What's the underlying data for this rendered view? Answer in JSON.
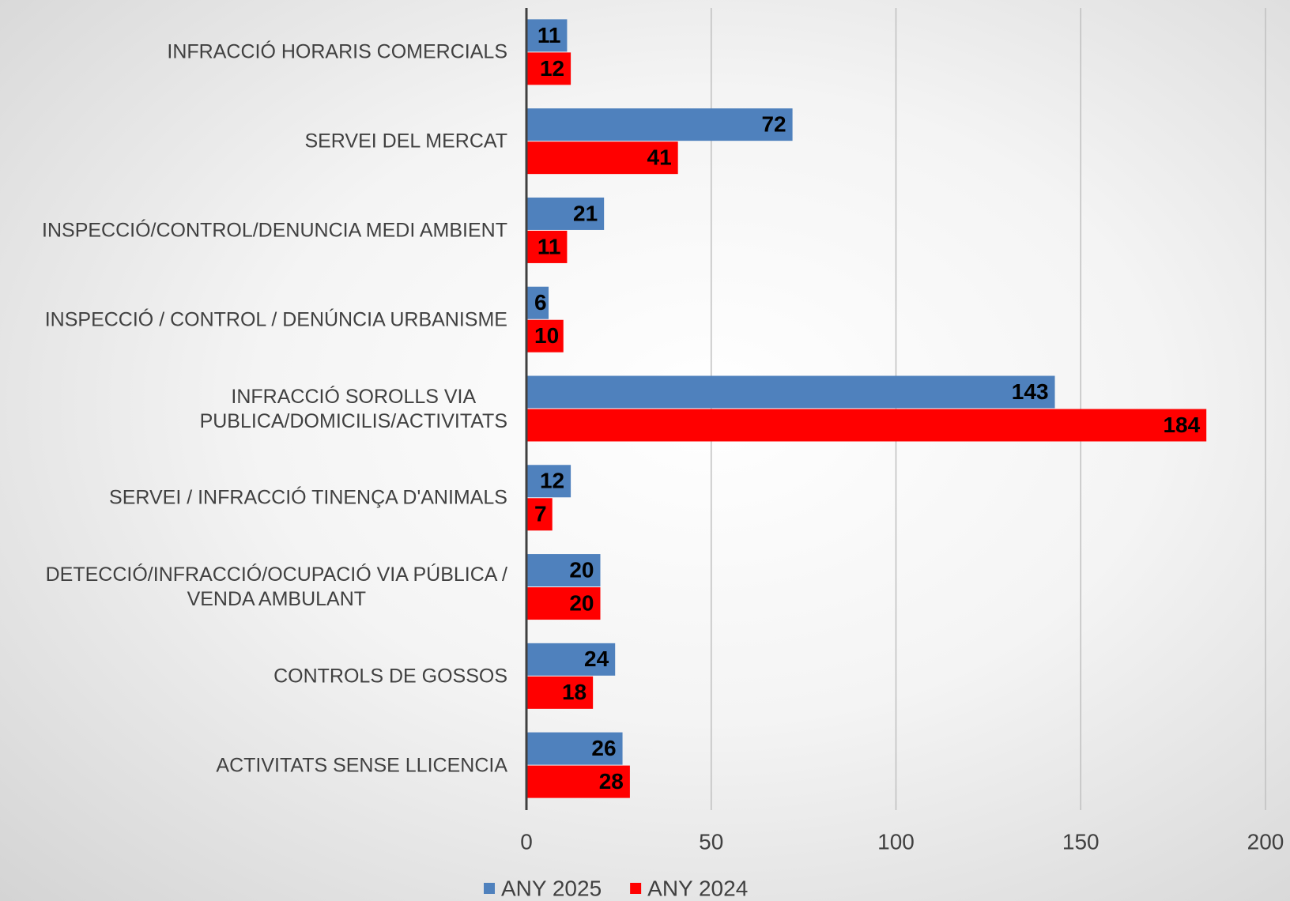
{
  "chart_data": {
    "type": "barh",
    "categories": [
      "INFRACCIÓ HORARIS COMERCIALS",
      "SERVEI DEL MERCAT",
      "INSPECCIÓ/CONTROL/DENUNCIA MEDI AMBIENT",
      "INSPECCIÓ / CONTROL / DENÚNCIA URBANISME",
      "INFRACCIÓ SOROLLS VIA\nPUBLICA/DOMICILIS/ACTIVITATS",
      "SERVEI / INFRACCIÓ TINENÇA D'ANIMALS",
      "DETECCIÓ/INFRACCIÓ/OCUPACIÓ VIA PÚBLICA /\nVENDA AMBULANT",
      "CONTROLS DE GOSSOS",
      "ACTIVITATS SENSE LLICENCIA"
    ],
    "series": [
      {
        "name": "ANY 2025",
        "color": "#4f81bd",
        "values": [
          11,
          72,
          21,
          6,
          143,
          12,
          20,
          24,
          26
        ]
      },
      {
        "name": "ANY 2024",
        "color": "#ff0000",
        "values": [
          12,
          41,
          11,
          10,
          184,
          7,
          20,
          18,
          28
        ]
      }
    ],
    "xlim": [
      0,
      200
    ],
    "xticks": [
      0,
      50,
      100,
      150,
      200
    ],
    "grid": true,
    "legend": "bottom"
  }
}
